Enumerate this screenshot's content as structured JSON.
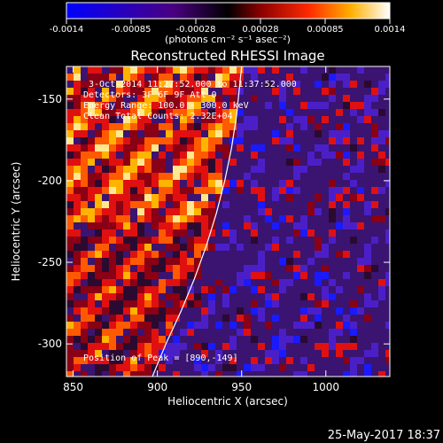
{
  "colorbar": {
    "ticks": [
      "-0.0014",
      "-0.00085",
      "-0.00028",
      "0.00028",
      "0.00085",
      "0.0014"
    ],
    "unit_label": "(photons cm⁻² s⁻¹ asec⁻²)",
    "range": [
      -0.0014,
      0.0014
    ]
  },
  "chart_data": {
    "type": "heatmap",
    "title": "Reconstructed RHESSI Image",
    "xlabel": "Heliocentric X (arcsec)",
    "ylabel": "Heliocentric Y (arcsec)",
    "xlim": [
      846,
      1038
    ],
    "ylim": [
      -320,
      -130
    ],
    "x_ticks": [
      850,
      900,
      950,
      1000
    ],
    "y_ticks": [
      -150,
      -200,
      -250,
      -300
    ],
    "annotations": [
      "3-Oct-2014 11:27:52.000 to 11:37:52.000",
      "Detectors: 3F 6F 9F  Att 0",
      "Energy Range: 100.0 - 300.0 keV",
      "Clean    Total Counts: 2.32E+04"
    ],
    "peak_label": "Position of Peak = [890,-149]",
    "limb_curve": [
      [
        897,
        -320
      ],
      [
        905,
        -300
      ],
      [
        914,
        -280
      ],
      [
        922,
        -260
      ],
      [
        929,
        -240
      ],
      [
        935,
        -220
      ],
      [
        940,
        -200
      ],
      [
        944,
        -180
      ],
      [
        947,
        -160
      ],
      [
        949,
        -140
      ],
      [
        950,
        -130
      ]
    ],
    "pattern": "diagonal stripes; strong positive (red/yellow) left of limb curve, weak mixed (purple) right of curve"
  },
  "timestamp": "25-May-2017 18:37"
}
